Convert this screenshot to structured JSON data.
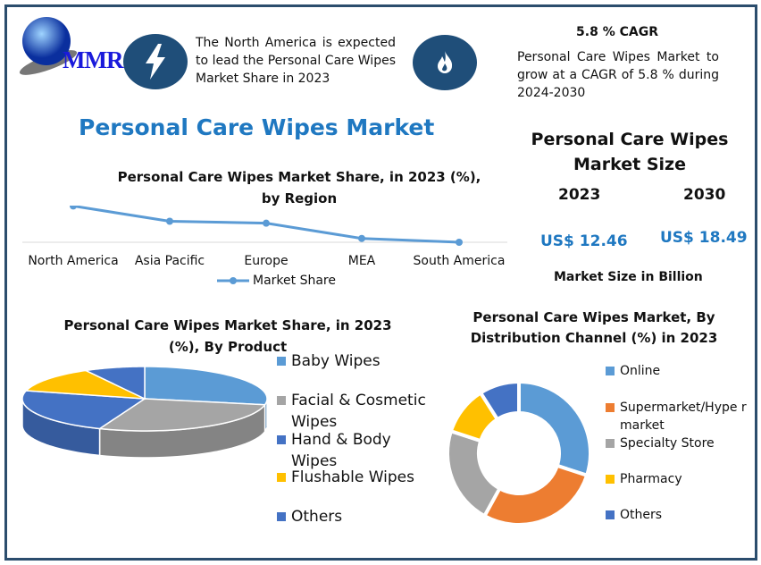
{
  "logo": {
    "text": "MMR"
  },
  "header": {
    "insight_text": "The North America is expected to lead the Personal Care Wipes Market Share in 2023",
    "cagr_title": "5.8 % CAGR",
    "cagr_text": "Personal Care Wipes Market to grow at a CAGR of 5.8 % during 2024-2030"
  },
  "icons": {
    "insight": "lightning-icon",
    "cagr": "flame-icon"
  },
  "main_title": "Personal Care Wipes Market",
  "market_size": {
    "title": "Personal Care Wipes Market Size",
    "year1": "2023",
    "year2": "2030",
    "value1": "US$ 12.46",
    "value2": "US$ 18.49",
    "unit": "Market Size in Billion"
  },
  "colors": {
    "accent": "#1f78c1",
    "frame": "#2b4d6d",
    "icon_bg": "#1f4e79"
  },
  "chart_data": [
    {
      "type": "line",
      "title": "Personal Care Wipes Market Share, in 2023 (%), by Region",
      "categories": [
        "North America",
        "Asia Pacific",
        "Europe",
        "MEA",
        "South America"
      ],
      "series": [
        {
          "name": "Market Share",
          "values": [
            35,
            27,
            26,
            18,
            16
          ]
        }
      ],
      "ylim": [
        16,
        40
      ],
      "legend": "bottom",
      "color": "#5b9bd5"
    },
    {
      "type": "pie",
      "title": "Personal Care Wipes Market Share, in 2023 (%), By Product",
      "categories": [
        "Baby Wipes",
        "Facial & Cosmetic Wipes",
        "Hand & Body Wipes",
        "Flushable Wipes",
        "Others"
      ],
      "values": [
        28,
        28,
        23,
        13,
        8
      ],
      "colors": [
        "#5b9bd5",
        "#a5a5a5",
        "#4472c4",
        "#ffc000",
        "#4472c4"
      ],
      "legend": "right"
    },
    {
      "type": "pie",
      "title": "Personal Care Wipes Market, By Distribution Channel (%) in 2023",
      "categories": [
        "Online",
        "Supermarket/Hypermarket",
        "Specialty Store",
        "Pharmacy",
        "Others"
      ],
      "legend_labels": [
        "Online",
        "Supermarket/Hype rmarket",
        "Specialty Store",
        "Pharmacy",
        "Others"
      ],
      "values": [
        30,
        28,
        22,
        11,
        9
      ],
      "colors": [
        "#5b9bd5",
        "#ed7d31",
        "#a5a5a5",
        "#ffc000",
        "#4472c4"
      ],
      "legend": "right"
    }
  ]
}
